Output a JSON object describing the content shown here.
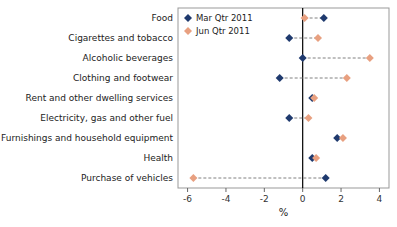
{
  "chart_data": {
    "type": "dumbbell",
    "categories": [
      "Food",
      "Cigarettes and tobacco",
      "Alcoholic beverages",
      "Clothing and footwear",
      "Rent and other dwelling services",
      "Electricity, gas and other fuel",
      "Furnishings and household equipment",
      "Health",
      "Purchase of vehicles"
    ],
    "series": [
      {
        "name": "Mar Qtr 2011",
        "color": "#1f3a6e",
        "marker": "diamond",
        "values": [
          1.1,
          -0.7,
          0.0,
          -1.2,
          0.5,
          -0.7,
          1.8,
          0.5,
          1.2
        ]
      },
      {
        "name": "Jun Qtr 2011",
        "color": "#e8a080",
        "marker": "diamond",
        "values": [
          0.1,
          0.8,
          3.5,
          2.3,
          0.6,
          0.3,
          2.1,
          0.7,
          -5.7
        ]
      }
    ],
    "x_label": "%",
    "xlim": [
      -6.5,
      4.5
    ],
    "xticks": [
      -6,
      -4,
      -2,
      0,
      2,
      4
    ],
    "legend": "left",
    "grid": false
  }
}
